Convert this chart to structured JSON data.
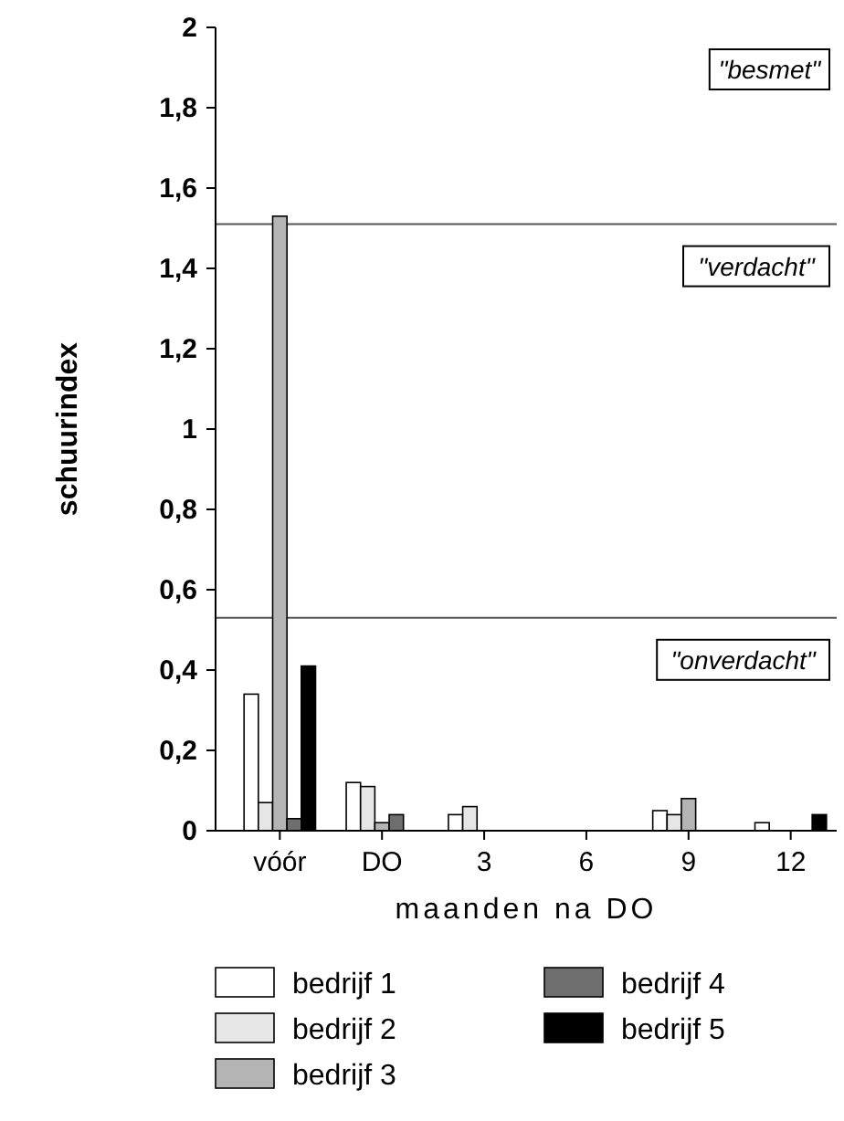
{
  "chart_data": {
    "type": "bar",
    "xlabel": "maanden na DO",
    "ylabel": "schuurindex",
    "categories": [
      "vóór",
      "DO",
      "3",
      "6",
      "9",
      "12"
    ],
    "series": [
      {
        "name": "bedrijf 1",
        "color": "#ffffff",
        "values": [
          0.34,
          0.12,
          0.04,
          0,
          0.05,
          0.02
        ]
      },
      {
        "name": "bedrijf 2",
        "color": "#e6e6e6",
        "values": [
          0.07,
          0.11,
          0.06,
          0,
          0.04,
          0
        ]
      },
      {
        "name": "bedrijf 3",
        "color": "#b4b4b4",
        "values": [
          1.53,
          0.02,
          0,
          0,
          0.08,
          0
        ]
      },
      {
        "name": "bedrijf 4",
        "color": "#6e6e6e",
        "values": [
          0.03,
          0.04,
          0,
          0,
          0,
          0
        ]
      },
      {
        "name": "bedrijf 5",
        "color": "#000000",
        "values": [
          0.41,
          0,
          0,
          0,
          0,
          0.04
        ]
      }
    ],
    "ylim": [
      0,
      2
    ],
    "yticks": [
      0,
      {
        "value": 0.2,
        "label": "0,2"
      },
      {
        "value": 0.4,
        "label": "0,4"
      },
      {
        "value": 0.6,
        "label": "0,6"
      },
      {
        "value": 0.8,
        "label": "0,8"
      },
      1,
      {
        "value": 1.2,
        "label": "1,2"
      },
      {
        "value": 1.4,
        "label": "1,4"
      },
      {
        "value": 1.6,
        "label": "1,6"
      },
      {
        "value": 1.8,
        "label": "1,8"
      },
      2
    ],
    "ref_lines": [
      {
        "axis": "y",
        "value": 1.51,
        "label": "\"verdacht\""
      },
      {
        "axis": "y",
        "value": 0.53,
        "label": "\"onverdacht\""
      }
    ],
    "annotations": [
      "\"besmet\""
    ],
    "grid": false,
    "legend": "bottom"
  }
}
